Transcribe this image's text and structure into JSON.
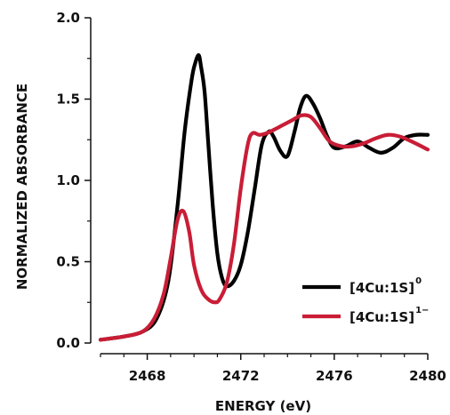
{
  "chart_data": {
    "type": "line",
    "xlabel": "ENERGY (eV)",
    "ylabel": "NORMALIZED ABSORBANCE",
    "xlim": [
      2466,
      2480
    ],
    "ylim": [
      0,
      2.0
    ],
    "xticks": [
      2468,
      2472,
      2476,
      2480
    ],
    "yticks": [
      "0.0",
      "0.5",
      "1.0",
      "1.5",
      "2.0"
    ],
    "xminor_step": 1,
    "legend_position": "bottom-right",
    "series": [
      {
        "name": "[4Cu:1S]",
        "superscript": "0",
        "color": "#000000",
        "x": [
          2466.0,
          2467.0,
          2467.8,
          2468.4,
          2468.9,
          2469.3,
          2469.6,
          2469.9,
          2470.05,
          2470.2,
          2470.3,
          2470.45,
          2470.6,
          2470.8,
          2471.0,
          2471.2,
          2471.4,
          2471.7,
          2472.0,
          2472.3,
          2472.6,
          2472.9,
          2473.2,
          2473.4,
          2473.7,
          2474.0,
          2474.3,
          2474.55,
          2474.8,
          2475.1,
          2475.4,
          2475.7,
          2476.0,
          2476.5,
          2477.0,
          2477.5,
          2478.0,
          2478.5,
          2479.0,
          2479.5,
          2480.0
        ],
        "y": [
          0.02,
          0.04,
          0.07,
          0.15,
          0.38,
          0.85,
          1.3,
          1.62,
          1.72,
          1.77,
          1.7,
          1.55,
          1.25,
          0.85,
          0.55,
          0.4,
          0.35,
          0.38,
          0.48,
          0.68,
          0.95,
          1.22,
          1.3,
          1.27,
          1.18,
          1.15,
          1.3,
          1.45,
          1.52,
          1.47,
          1.38,
          1.27,
          1.2,
          1.21,
          1.24,
          1.2,
          1.17,
          1.2,
          1.26,
          1.28,
          1.28
        ]
      },
      {
        "name": "[4Cu:1S]",
        "superscript": "1−",
        "color": "#c91d36",
        "x": [
          2466.0,
          2467.0,
          2467.8,
          2468.3,
          2468.7,
          2469.0,
          2469.3,
          2469.55,
          2469.8,
          2470.0,
          2470.3,
          2470.6,
          2470.9,
          2471.1,
          2471.4,
          2471.7,
          2472.0,
          2472.3,
          2472.5,
          2472.8,
          2473.1,
          2473.4,
          2473.8,
          2474.2,
          2474.6,
          2475.0,
          2475.4,
          2475.8,
          2476.3,
          2476.8,
          2477.3,
          2477.8,
          2478.3,
          2478.8,
          2479.3,
          2480.0
        ],
        "y": [
          0.02,
          0.04,
          0.07,
          0.15,
          0.3,
          0.52,
          0.76,
          0.81,
          0.68,
          0.48,
          0.33,
          0.27,
          0.25,
          0.27,
          0.37,
          0.6,
          0.95,
          1.22,
          1.29,
          1.28,
          1.29,
          1.31,
          1.34,
          1.37,
          1.4,
          1.39,
          1.32,
          1.24,
          1.21,
          1.21,
          1.23,
          1.26,
          1.28,
          1.27,
          1.24,
          1.19
        ]
      }
    ]
  }
}
